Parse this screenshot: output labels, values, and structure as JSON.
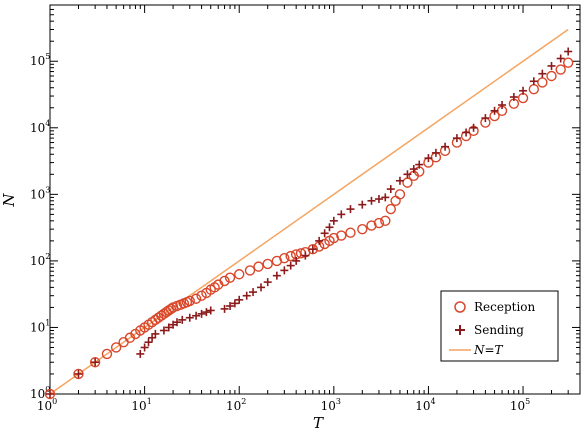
{
  "chart_data": {
    "type": "scatter",
    "xlabel": "T",
    "ylabel": "N",
    "xscale": "log",
    "yscale": "log",
    "xlim": [
      1,
      400000
    ],
    "ylim": [
      1,
      700000
    ],
    "x_tick_labels": [
      {
        "base": "10",
        "exp": "0"
      },
      {
        "base": "10",
        "exp": "1"
      },
      {
        "base": "10",
        "exp": "2"
      },
      {
        "base": "10",
        "exp": "3"
      },
      {
        "base": "10",
        "exp": "4"
      },
      {
        "base": "10",
        "exp": "5"
      }
    ],
    "y_tick_labels": [
      {
        "base": "10",
        "exp": "0"
      },
      {
        "base": "10",
        "exp": "1"
      },
      {
        "base": "10",
        "exp": "2"
      },
      {
        "base": "10",
        "exp": "3"
      },
      {
        "base": "10",
        "exp": "4"
      },
      {
        "base": "10",
        "exp": "5"
      }
    ],
    "legend_position": "lower-right",
    "series": [
      {
        "name": "Reception",
        "marker": "circle-open",
        "color": "#d9472b",
        "points": [
          [
            1,
            1
          ],
          [
            2,
            2
          ],
          [
            3,
            3
          ],
          [
            4,
            4
          ],
          [
            5,
            5
          ],
          [
            6,
            6
          ],
          [
            7,
            7
          ],
          [
            8,
            8
          ],
          [
            9,
            9
          ],
          [
            10,
            10
          ],
          [
            11,
            11
          ],
          [
            12,
            12
          ],
          [
            13,
            13
          ],
          [
            14,
            14
          ],
          [
            15,
            15
          ],
          [
            16,
            16
          ],
          [
            17,
            17
          ],
          [
            18,
            18
          ],
          [
            19,
            19
          ],
          [
            20,
            20
          ],
          [
            22,
            21
          ],
          [
            24,
            22
          ],
          [
            26,
            23
          ],
          [
            28,
            24
          ],
          [
            30,
            25
          ],
          [
            35,
            27
          ],
          [
            40,
            30
          ],
          [
            45,
            33
          ],
          [
            50,
            37
          ],
          [
            55,
            40
          ],
          [
            60,
            44
          ],
          [
            70,
            50
          ],
          [
            80,
            56
          ],
          [
            100,
            63
          ],
          [
            130,
            72
          ],
          [
            160,
            82
          ],
          [
            200,
            90
          ],
          [
            250,
            100
          ],
          [
            300,
            110
          ],
          [
            350,
            118
          ],
          [
            400,
            125
          ],
          [
            450,
            130
          ],
          [
            500,
            135
          ],
          [
            600,
            150
          ],
          [
            700,
            165
          ],
          [
            800,
            180
          ],
          [
            900,
            200
          ],
          [
            1000,
            220
          ],
          [
            1200,
            240
          ],
          [
            1500,
            265
          ],
          [
            2000,
            300
          ],
          [
            2500,
            340
          ],
          [
            3000,
            370
          ],
          [
            3500,
            400
          ],
          [
            4000,
            600
          ],
          [
            4500,
            800
          ],
          [
            5000,
            1000
          ],
          [
            6000,
            1500
          ],
          [
            7000,
            1900
          ],
          [
            8000,
            2200
          ],
          [
            10000,
            3000
          ],
          [
            12000,
            3600
          ],
          [
            15000,
            4500
          ],
          [
            20000,
            6000
          ],
          [
            25000,
            7500
          ],
          [
            30000,
            9000
          ],
          [
            40000,
            12000
          ],
          [
            50000,
            15000
          ],
          [
            60000,
            18000
          ],
          [
            80000,
            23000
          ],
          [
            100000,
            28000
          ],
          [
            130000,
            38000
          ],
          [
            160000,
            48000
          ],
          [
            200000,
            60000
          ],
          [
            250000,
            75000
          ],
          [
            300000,
            95000
          ]
        ]
      },
      {
        "name": "Sending",
        "marker": "plus",
        "color": "#8b1a1a",
        "points": [
          [
            1,
            1
          ],
          [
            2,
            2
          ],
          [
            3,
            3
          ],
          [
            9,
            4
          ],
          [
            10,
            5
          ],
          [
            11,
            6
          ],
          [
            12,
            7
          ],
          [
            13,
            8
          ],
          [
            16,
            9
          ],
          [
            18,
            10
          ],
          [
            20,
            11
          ],
          [
            22,
            12
          ],
          [
            25,
            13
          ],
          [
            30,
            14
          ],
          [
            35,
            15
          ],
          [
            40,
            16
          ],
          [
            45,
            17
          ],
          [
            50,
            18
          ],
          [
            70,
            19
          ],
          [
            80,
            21
          ],
          [
            90,
            23
          ],
          [
            100,
            26
          ],
          [
            120,
            30
          ],
          [
            140,
            34
          ],
          [
            170,
            40
          ],
          [
            200,
            48
          ],
          [
            250,
            60
          ],
          [
            300,
            72
          ],
          [
            350,
            85
          ],
          [
            400,
            100
          ],
          [
            500,
            120
          ],
          [
            600,
            150
          ],
          [
            700,
            200
          ],
          [
            800,
            260
          ],
          [
            900,
            320
          ],
          [
            1000,
            400
          ],
          [
            1200,
            500
          ],
          [
            1500,
            600
          ],
          [
            2000,
            700
          ],
          [
            2500,
            800
          ],
          [
            3000,
            850
          ],
          [
            3500,
            900
          ],
          [
            4000,
            1200
          ],
          [
            5000,
            1600
          ],
          [
            6000,
            2000
          ],
          [
            7000,
            2400
          ],
          [
            8000,
            2800
          ],
          [
            10000,
            3500
          ],
          [
            12000,
            4200
          ],
          [
            15000,
            5200
          ],
          [
            20000,
            7000
          ],
          [
            25000,
            8500
          ],
          [
            30000,
            10000
          ],
          [
            40000,
            14000
          ],
          [
            50000,
            18000
          ],
          [
            60000,
            22000
          ],
          [
            80000,
            29000
          ],
          [
            100000,
            36000
          ],
          [
            130000,
            50000
          ],
          [
            160000,
            65000
          ],
          [
            200000,
            85000
          ],
          [
            250000,
            110000
          ],
          [
            300000,
            140000
          ]
        ]
      },
      {
        "name": "N=T",
        "marker": "line",
        "color": "#f4a460",
        "points": [
          [
            1,
            1
          ],
          [
            300000,
            300000
          ]
        ]
      }
    ]
  },
  "legend": {
    "reception_label": "Reception",
    "sending_label": "Sending",
    "line_label": "N=T"
  }
}
